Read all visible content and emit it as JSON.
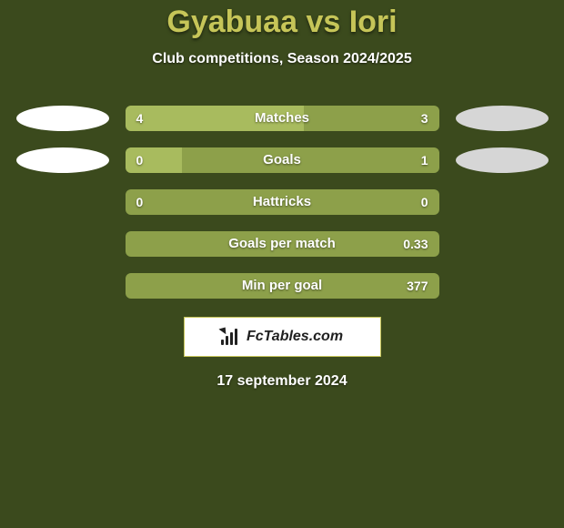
{
  "colors": {
    "page_bg": "#3b4a1d",
    "title_color": "#c6c558",
    "subtitle_color": "#ffffff",
    "bar_bg": "#8da04a",
    "bar_fill": "#a8bb5e",
    "bar_label_color": "#ffffff",
    "bar_value_color": "#ffffff",
    "oval_left_1": "#ffffff",
    "oval_right_1": "#d6d6d6",
    "oval_left_2": "#ffffff",
    "oval_right_2": "#d6d6d6",
    "brand_bg": "#ffffff",
    "brand_border": "#c6c558",
    "brand_text": "#212121",
    "brand_icon_color": "#212121",
    "date_color": "#ffffff"
  },
  "title": "Gyabuaa vs Iori",
  "subtitle": "Club competitions, Season 2024/2025",
  "rows": [
    {
      "label": "Matches",
      "left": "4",
      "right": "3",
      "fill_pct": 57,
      "oval_left": true,
      "oval_right": true
    },
    {
      "label": "Goals",
      "left": "0",
      "right": "1",
      "fill_pct": 18,
      "oval_left": true,
      "oval_right": true
    },
    {
      "label": "Hattricks",
      "left": "0",
      "right": "0",
      "fill_pct": 0,
      "oval_left": false,
      "oval_right": false
    },
    {
      "label": "Goals per match",
      "left": "",
      "right": "0.33",
      "fill_pct": 0,
      "oval_left": false,
      "oval_right": false
    },
    {
      "label": "Min per goal",
      "left": "",
      "right": "377",
      "fill_pct": 0,
      "oval_left": false,
      "oval_right": false
    }
  ],
  "brand": {
    "text": "FcTables.com"
  },
  "date": "17 september 2024"
}
